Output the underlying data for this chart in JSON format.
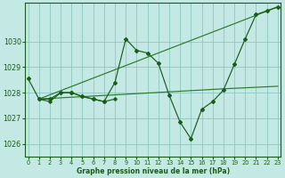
{
  "title": "Graphe pression niveau de la mer (hPa)",
  "background_color": "#c4e8e4",
  "grid_color": "#8cc8c0",
  "line_dark": "#1a5c1a",
  "line_mid": "#2d7a2d",
  "xlim": [
    -0.3,
    23.3
  ],
  "ylim": [
    1025.5,
    1031.5
  ],
  "yticks": [
    1026,
    1027,
    1028,
    1029,
    1030
  ],
  "xticks": [
    0,
    1,
    2,
    3,
    4,
    5,
    6,
    7,
    8,
    9,
    10,
    11,
    12,
    13,
    14,
    15,
    16,
    17,
    18,
    19,
    20,
    21,
    22,
    23
  ],
  "series_main": {
    "x": [
      0,
      1,
      2,
      3,
      4,
      5,
      6,
      7,
      8,
      9,
      10,
      11,
      12,
      13,
      14,
      15,
      16,
      17,
      18,
      19,
      20,
      21,
      22,
      23
    ],
    "y": [
      1028.55,
      1027.75,
      1027.75,
      1028.0,
      1028.0,
      1027.85,
      1027.75,
      1027.65,
      1028.4,
      1030.1,
      1029.65,
      1029.55,
      1029.15,
      1027.9,
      1026.85,
      1026.2,
      1027.35,
      1027.65,
      1028.1,
      1029.1,
      1030.1,
      1031.05,
      1031.2,
      1031.35
    ]
  },
  "series_flat": {
    "x": [
      1,
      2,
      3,
      4,
      5,
      6,
      7,
      8
    ],
    "y": [
      1027.75,
      1027.65,
      1028.0,
      1028.0,
      1027.85,
      1027.75,
      1027.65,
      1027.75
    ]
  },
  "series_trend1": {
    "x": [
      1,
      23
    ],
    "y": [
      1027.75,
      1031.35
    ]
  },
  "series_trend2": {
    "x": [
      1,
      18,
      23
    ],
    "y": [
      1027.75,
      1028.15,
      1028.25
    ]
  }
}
